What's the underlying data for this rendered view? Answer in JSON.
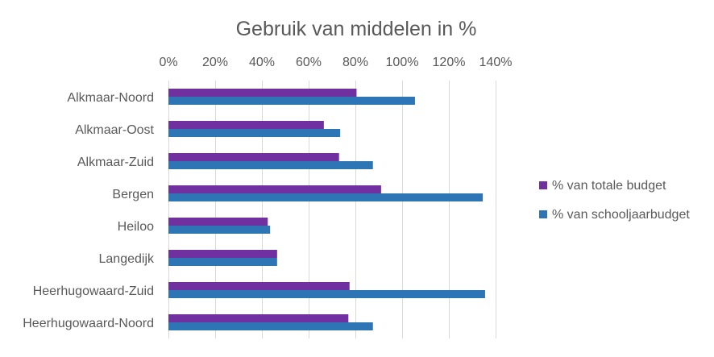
{
  "chart_data": {
    "type": "bar",
    "orientation": "horizontal",
    "title": "Gebruik van middelen in %",
    "xlabel": "",
    "ylabel": "",
    "xlim": [
      0,
      140
    ],
    "x_ticks": [
      "0%",
      "20%",
      "40%",
      "60%",
      "80%",
      "100%",
      "120%",
      "140%"
    ],
    "x_tick_values": [
      0,
      20,
      40,
      60,
      80,
      100,
      120,
      140
    ],
    "axis_position": "top",
    "grid": true,
    "legend_position": "right",
    "categories": [
      "Alkmaar-Noord",
      "Alkmaar-Oost",
      "Alkmaar-Zuid",
      "Bergen",
      "Heiloo",
      "Langedijk",
      "Heerhugowaard-Zuid",
      "Heerhugowaard-Noord"
    ],
    "series": [
      {
        "name": "% van totale budget",
        "color": "#7030a0",
        "values": [
          80.5,
          66.5,
          73,
          91,
          42.5,
          46.5,
          77.5,
          77
        ]
      },
      {
        "name": "% van schooljaarbudget",
        "color": "#2e75b6",
        "values": [
          105.5,
          73.5,
          87.5,
          134.5,
          43.5,
          46.5,
          135.5,
          87.5
        ]
      }
    ]
  }
}
